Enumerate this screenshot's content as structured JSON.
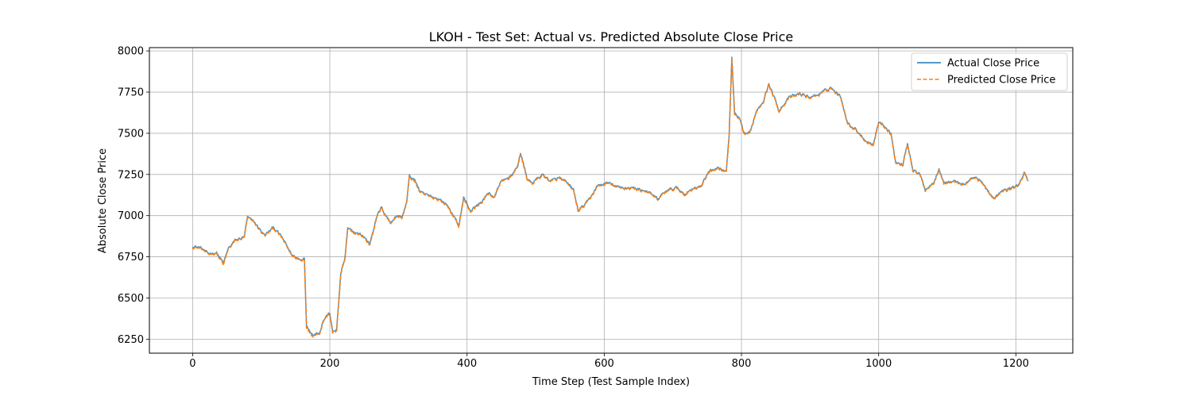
{
  "chart_data": {
    "type": "line",
    "title": "LKOH - Test Set: Actual vs. Predicted Absolute Close Price",
    "xlabel": "Time Step (Test Sample Index)",
    "ylabel": "Absolute Close Price",
    "xlim": [
      -63,
      1283
    ],
    "ylim": [
      6165,
      8020
    ],
    "xticks": [
      0,
      200,
      400,
      600,
      800,
      1000,
      1200
    ],
    "yticks": [
      6250,
      6500,
      6750,
      7000,
      7250,
      7500,
      7750,
      8000
    ],
    "grid": true,
    "legend_position": "top-right",
    "series": [
      {
        "name": "Actual Close Price",
        "color": "#1f77b4",
        "style": "solid",
        "keypoints": [
          [
            0,
            6815
          ],
          [
            12,
            6805
          ],
          [
            22,
            6770
          ],
          [
            35,
            6775
          ],
          [
            45,
            6710
          ],
          [
            52,
            6800
          ],
          [
            62,
            6850
          ],
          [
            75,
            6870
          ],
          [
            80,
            6990
          ],
          [
            90,
            6960
          ],
          [
            105,
            6880
          ],
          [
            118,
            6930
          ],
          [
            130,
            6870
          ],
          [
            145,
            6760
          ],
          [
            158,
            6730
          ],
          [
            163,
            6750
          ],
          [
            166,
            6330
          ],
          [
            175,
            6280
          ],
          [
            185,
            6290
          ],
          [
            190,
            6360
          ],
          [
            195,
            6390
          ],
          [
            200,
            6410
          ],
          [
            204,
            6295
          ],
          [
            210,
            6310
          ],
          [
            216,
            6650
          ],
          [
            222,
            6740
          ],
          [
            226,
            6920
          ],
          [
            235,
            6900
          ],
          [
            248,
            6880
          ],
          [
            258,
            6830
          ],
          [
            268,
            6990
          ],
          [
            275,
            7050
          ],
          [
            288,
            6960
          ],
          [
            298,
            7000
          ],
          [
            305,
            6990
          ],
          [
            312,
            7080
          ],
          [
            316,
            7240
          ],
          [
            325,
            7210
          ],
          [
            332,
            7140
          ],
          [
            345,
            7120
          ],
          [
            360,
            7100
          ],
          [
            372,
            7060
          ],
          [
            388,
            6940
          ],
          [
            395,
            7110
          ],
          [
            405,
            7030
          ],
          [
            420,
            7080
          ],
          [
            432,
            7140
          ],
          [
            440,
            7110
          ],
          [
            448,
            7200
          ],
          [
            460,
            7230
          ],
          [
            472,
            7280
          ],
          [
            478,
            7380
          ],
          [
            488,
            7220
          ],
          [
            495,
            7200
          ],
          [
            510,
            7250
          ],
          [
            522,
            7210
          ],
          [
            535,
            7230
          ],
          [
            545,
            7200
          ],
          [
            555,
            7160
          ],
          [
            562,
            7030
          ],
          [
            575,
            7080
          ],
          [
            590,
            7180
          ],
          [
            605,
            7200
          ],
          [
            622,
            7170
          ],
          [
            640,
            7170
          ],
          [
            662,
            7150
          ],
          [
            678,
            7100
          ],
          [
            690,
            7150
          ],
          [
            705,
            7170
          ],
          [
            718,
            7130
          ],
          [
            730,
            7170
          ],
          [
            742,
            7180
          ],
          [
            752,
            7270
          ],
          [
            765,
            7290
          ],
          [
            778,
            7270
          ],
          [
            782,
            7480
          ],
          [
            786,
            7960
          ],
          [
            790,
            7620
          ],
          [
            798,
            7580
          ],
          [
            803,
            7500
          ],
          [
            812,
            7500
          ],
          [
            822,
            7640
          ],
          [
            832,
            7700
          ],
          [
            840,
            7800
          ],
          [
            855,
            7640
          ],
          [
            870,
            7720
          ],
          [
            885,
            7740
          ],
          [
            900,
            7720
          ],
          [
            915,
            7740
          ],
          [
            930,
            7780
          ],
          [
            945,
            7720
          ],
          [
            955,
            7560
          ],
          [
            968,
            7520
          ],
          [
            980,
            7460
          ],
          [
            992,
            7430
          ],
          [
            1000,
            7570
          ],
          [
            1010,
            7540
          ],
          [
            1018,
            7500
          ],
          [
            1025,
            7320
          ],
          [
            1035,
            7310
          ],
          [
            1042,
            7440
          ],
          [
            1050,
            7280
          ],
          [
            1060,
            7250
          ],
          [
            1068,
            7160
          ],
          [
            1080,
            7200
          ],
          [
            1088,
            7290
          ],
          [
            1095,
            7200
          ],
          [
            1110,
            7210
          ],
          [
            1125,
            7190
          ],
          [
            1140,
            7240
          ],
          [
            1155,
            7180
          ],
          [
            1168,
            7100
          ],
          [
            1180,
            7150
          ],
          [
            1195,
            7170
          ],
          [
            1205,
            7190
          ],
          [
            1212,
            7260
          ],
          [
            1218,
            7210
          ]
        ]
      },
      {
        "name": "Predicted Close Price",
        "color": "#ff7f0e",
        "style": "dashed",
        "keypoints": [
          [
            0,
            6808
          ],
          [
            12,
            6800
          ],
          [
            22,
            6765
          ],
          [
            35,
            6770
          ],
          [
            45,
            6700
          ],
          [
            52,
            6795
          ],
          [
            62,
            6845
          ],
          [
            75,
            6865
          ],
          [
            80,
            6985
          ],
          [
            90,
            6955
          ],
          [
            105,
            6875
          ],
          [
            118,
            6925
          ],
          [
            130,
            6865
          ],
          [
            145,
            6755
          ],
          [
            158,
            6725
          ],
          [
            163,
            6745
          ],
          [
            166,
            6320
          ],
          [
            175,
            6270
          ],
          [
            185,
            6285
          ],
          [
            190,
            6355
          ],
          [
            195,
            6385
          ],
          [
            200,
            6400
          ],
          [
            204,
            6285
          ],
          [
            210,
            6300
          ],
          [
            216,
            6645
          ],
          [
            222,
            6735
          ],
          [
            226,
            6910
          ],
          [
            235,
            6895
          ],
          [
            248,
            6875
          ],
          [
            258,
            6820
          ],
          [
            268,
            6985
          ],
          [
            275,
            7045
          ],
          [
            288,
            6955
          ],
          [
            298,
            6995
          ],
          [
            305,
            6985
          ],
          [
            312,
            7075
          ],
          [
            316,
            7235
          ],
          [
            325,
            7200
          ],
          [
            332,
            7135
          ],
          [
            345,
            7115
          ],
          [
            360,
            7095
          ],
          [
            372,
            7055
          ],
          [
            388,
            6935
          ],
          [
            395,
            7100
          ],
          [
            405,
            7025
          ],
          [
            420,
            7075
          ],
          [
            432,
            7135
          ],
          [
            440,
            7105
          ],
          [
            448,
            7195
          ],
          [
            460,
            7225
          ],
          [
            472,
            7275
          ],
          [
            478,
            7370
          ],
          [
            488,
            7215
          ],
          [
            495,
            7195
          ],
          [
            510,
            7245
          ],
          [
            522,
            7205
          ],
          [
            535,
            7225
          ],
          [
            545,
            7195
          ],
          [
            555,
            7155
          ],
          [
            562,
            7025
          ],
          [
            575,
            7075
          ],
          [
            590,
            7175
          ],
          [
            605,
            7195
          ],
          [
            622,
            7165
          ],
          [
            640,
            7165
          ],
          [
            662,
            7145
          ],
          [
            678,
            7095
          ],
          [
            690,
            7145
          ],
          [
            705,
            7165
          ],
          [
            718,
            7125
          ],
          [
            730,
            7165
          ],
          [
            742,
            7175
          ],
          [
            752,
            7265
          ],
          [
            765,
            7285
          ],
          [
            778,
            7265
          ],
          [
            782,
            7470
          ],
          [
            786,
            7950
          ],
          [
            790,
            7610
          ],
          [
            798,
            7575
          ],
          [
            803,
            7495
          ],
          [
            812,
            7495
          ],
          [
            822,
            7635
          ],
          [
            832,
            7695
          ],
          [
            840,
            7795
          ],
          [
            855,
            7635
          ],
          [
            870,
            7715
          ],
          [
            885,
            7735
          ],
          [
            900,
            7715
          ],
          [
            915,
            7735
          ],
          [
            930,
            7775
          ],
          [
            945,
            7715
          ],
          [
            955,
            7555
          ],
          [
            968,
            7515
          ],
          [
            980,
            7455
          ],
          [
            992,
            7425
          ],
          [
            1000,
            7565
          ],
          [
            1010,
            7535
          ],
          [
            1018,
            7495
          ],
          [
            1025,
            7315
          ],
          [
            1035,
            7305
          ],
          [
            1042,
            7435
          ],
          [
            1050,
            7275
          ],
          [
            1060,
            7245
          ],
          [
            1068,
            7155
          ],
          [
            1080,
            7195
          ],
          [
            1088,
            7285
          ],
          [
            1095,
            7195
          ],
          [
            1110,
            7205
          ],
          [
            1125,
            7185
          ],
          [
            1140,
            7235
          ],
          [
            1155,
            7175
          ],
          [
            1168,
            7095
          ],
          [
            1180,
            7145
          ],
          [
            1195,
            7165
          ],
          [
            1205,
            7185
          ],
          [
            1212,
            7255
          ],
          [
            1218,
            7205
          ]
        ]
      }
    ]
  }
}
